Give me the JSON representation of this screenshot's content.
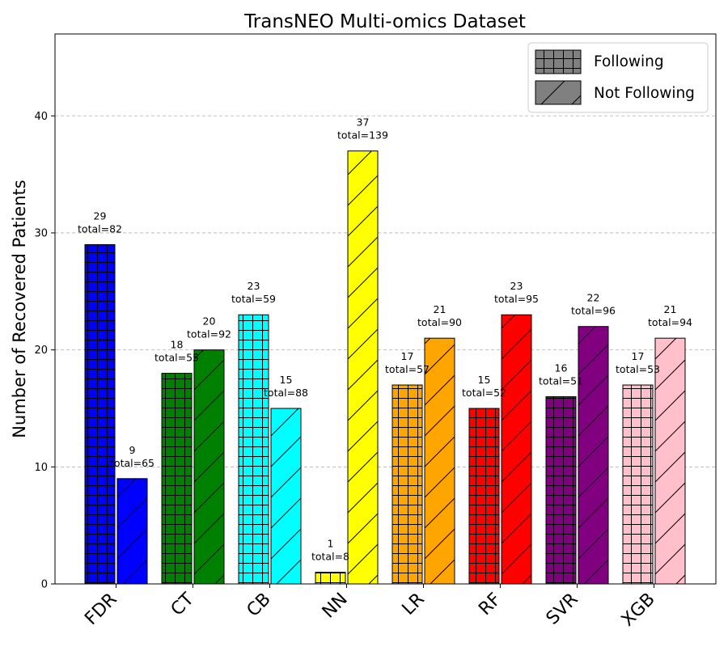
{
  "chart_data": {
    "type": "bar",
    "title": "TransNEO Multi-omics Dataset",
    "xlabel": "",
    "ylabel": "Number of Recovered Patients",
    "ylim": [
      0,
      47
    ],
    "yticks": [
      0,
      10,
      20,
      30,
      40
    ],
    "grid": "horizontal-dashed",
    "legend_position": "top-right",
    "categories": [
      "FDR",
      "CT",
      "CB",
      "NN",
      "LR",
      "RF",
      "SVR",
      "XGB"
    ],
    "category_colors": [
      "#0000ff",
      "#008000",
      "#00ffff",
      "#ffff00",
      "#ffa500",
      "#ff0000",
      "#800080",
      "#ffc0cb"
    ],
    "series": [
      {
        "name": "Following",
        "hatch": "grid",
        "values": [
          29,
          18,
          23,
          1,
          17,
          15,
          16,
          17
        ],
        "labels": [
          "29",
          "18",
          "23",
          "1",
          "17",
          "15",
          "16",
          "17"
        ],
        "totals": [
          "total=82",
          "total=55",
          "total=59",
          "total=8",
          "total=57",
          "total=52",
          "total=51",
          "total=53"
        ]
      },
      {
        "name": "Not Following",
        "hatch": "diagonal",
        "values": [
          9,
          20,
          15,
          37,
          21,
          23,
          22,
          21
        ],
        "labels": [
          "9",
          "20",
          "15",
          "37",
          "21",
          "23",
          "22",
          "21"
        ],
        "totals": [
          "total=65",
          "total=92",
          "total=88",
          "total=139",
          "total=90",
          "total=95",
          "total=96",
          "total=94"
        ]
      }
    ],
    "legend_swatch_color": "#808080"
  }
}
